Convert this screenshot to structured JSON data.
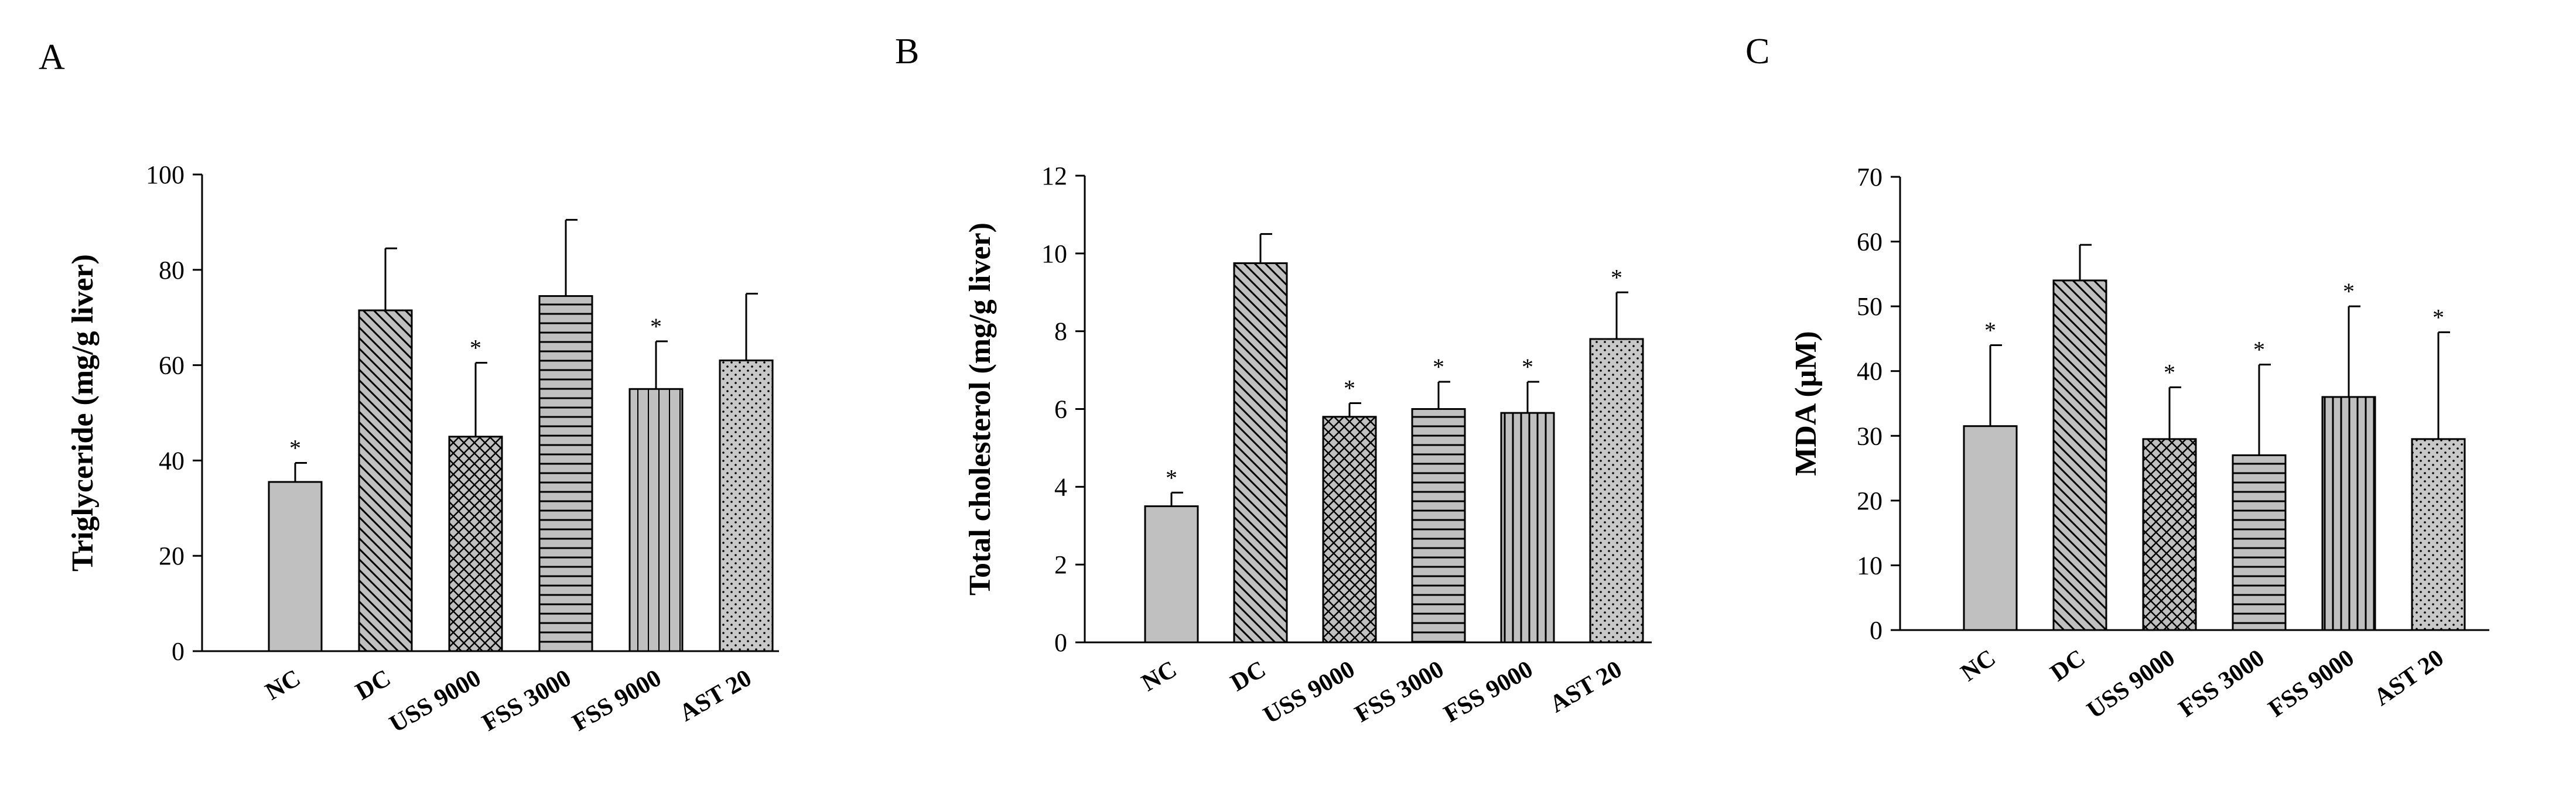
{
  "chart_data": [
    {
      "type": "bar",
      "panel": "A",
      "ylabel": "Triglyceride (mg/g liver)",
      "ylim": [
        0,
        100
      ],
      "yticks": [
        0,
        20,
        40,
        60,
        80,
        100
      ],
      "categories": [
        "NC",
        "DC",
        "USS 9000",
        "FSS 3000",
        "FSS 9000",
        "AST 20"
      ],
      "values": [
        35.5,
        71.5,
        45,
        74.5,
        55,
        61
      ],
      "errors": [
        4,
        13,
        15.5,
        16,
        10,
        14
      ],
      "significant": [
        "*",
        "",
        "*",
        "",
        "*",
        ""
      ],
      "patterns": [
        "solid",
        "diag-down",
        "cross",
        "horizontal",
        "vertical-solid",
        "dots"
      ]
    },
    {
      "type": "bar",
      "panel": "B",
      "ylabel": "Total cholesterol (mg/g liver)",
      "ylim": [
        0,
        12
      ],
      "yticks": [
        0,
        2,
        4,
        6,
        8,
        10,
        12
      ],
      "categories": [
        "NC",
        "DC",
        "USS 9000",
        "FSS 3000",
        "FSS 9000",
        "AST 20"
      ],
      "values": [
        3.5,
        9.75,
        5.8,
        6.0,
        5.9,
        7.8
      ],
      "errors": [
        0.35,
        0.75,
        0.35,
        0.7,
        0.8,
        1.2
      ],
      "significant": [
        "*",
        "",
        "*",
        "*",
        "*",
        "*"
      ],
      "patterns": [
        "solid",
        "diag-down",
        "cross",
        "horizontal",
        "vertical",
        "dots"
      ]
    },
    {
      "type": "bar",
      "panel": "C",
      "ylabel": "MDA (μM)",
      "ylim": [
        0,
        70
      ],
      "yticks": [
        0,
        10,
        20,
        30,
        40,
        50,
        60,
        70
      ],
      "categories": [
        "NC",
        "DC",
        "USS 9000",
        "FSS 3000",
        "FSS 9000",
        "AST 20"
      ],
      "values": [
        31.5,
        54,
        29.5,
        27,
        36,
        29.5
      ],
      "errors": [
        12.5,
        5.5,
        8,
        14,
        14,
        16.5
      ],
      "significant": [
        "*",
        "",
        "*",
        "*",
        "*",
        "*"
      ],
      "patterns": [
        "solid",
        "diag-down",
        "cross",
        "horizontal",
        "vertical",
        "dots"
      ]
    }
  ],
  "colors": {
    "bar_fill": "#c0c0c0",
    "axis": "#000000",
    "background": "#ffffff"
  }
}
